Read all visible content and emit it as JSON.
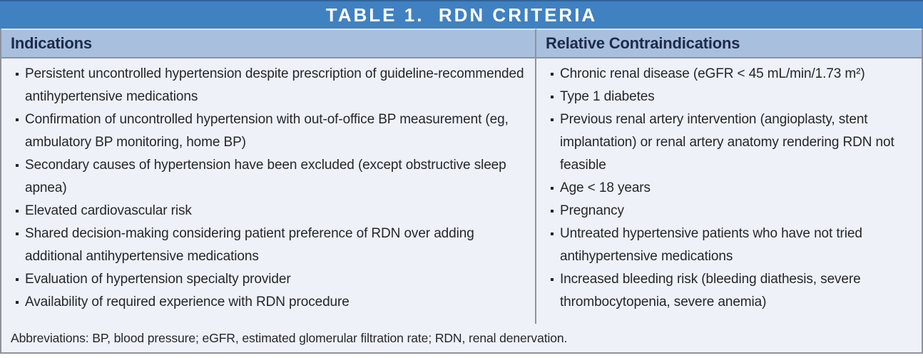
{
  "colors": {
    "title_bar_blue": "#4081c2",
    "title_bar_top_edge": "#2f649c",
    "header_row_blue": "#a9bfde",
    "cell_background": "#eef1f8",
    "header_text_navy": "#1d2b49",
    "body_text": "#26262a",
    "border_gray": "#8e929c",
    "title_text_white": "#ffffff"
  },
  "table": {
    "title": "TABLE 1.  RDN CRITERIA",
    "columns": [
      {
        "header": "Indications",
        "items": [
          "Persistent uncontrolled hypertension despite prescription of guideline-recommended antihypertensive medications",
          "Confirmation of uncontrolled hypertension with out-of-office BP measurement (eg, ambulatory BP monitoring, home BP)",
          "Secondary causes of hypertension have been excluded (except obstructive sleep apnea)",
          "Elevated cardiovascular risk",
          "Shared decision-making considering patient preference of RDN over adding additional antihypertensive medications",
          "Evaluation of hypertension specialty provider",
          "Availability of required experience with RDN procedure"
        ]
      },
      {
        "header": "Relative Contraindications",
        "items": [
          "Chronic renal disease (eGFR < 45 mL/min/1.73 m²)",
          "Type 1 diabetes",
          "Previous renal artery intervention (angioplasty, stent implantation) or renal artery anatomy rendering RDN not feasible",
          "Age < 18 years",
          "Pregnancy",
          "Untreated hypertensive patients who have not tried antihypertensive medications",
          "Increased bleeding risk (bleeding diathesis, severe thrombocytopenia, severe anemia)"
        ]
      }
    ],
    "footnote": "Abbreviations: BP, blood pressure; eGFR, estimated glomerular filtration rate; RDN, renal denervation."
  }
}
